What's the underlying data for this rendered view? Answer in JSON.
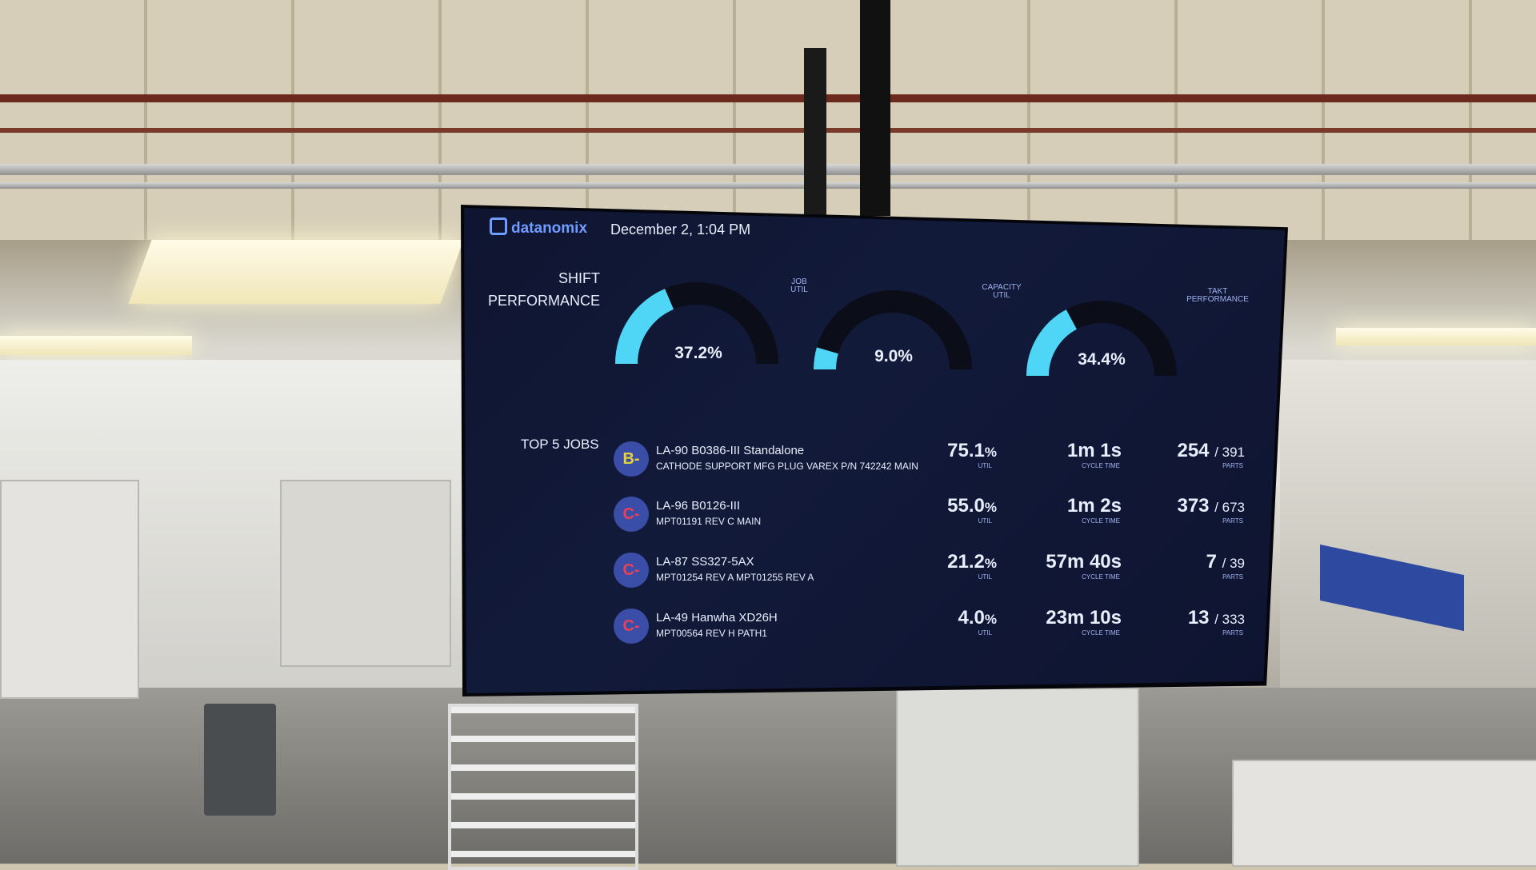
{
  "header": {
    "brand": "datanomix",
    "datetime": "December 2, 1:04 PM"
  },
  "shift_performance": {
    "title_line1": "SHIFT",
    "title_line2": "PERFORMANCE",
    "gauges": [
      {
        "label_line1": "JOB",
        "label_line2": "UTIL",
        "value_text": "37.2%",
        "value": 37.2
      },
      {
        "label_line1": "CAPACITY",
        "label_line2": "UTIL",
        "value_text": "9.0%",
        "value": 9.0
      },
      {
        "label_line1": "TAKT",
        "label_line2": "PERFORMANCE",
        "value_text": "34.4%",
        "value": 34.4
      }
    ],
    "gauge_color": "#4fd6f7",
    "track_color": "#0b0d18"
  },
  "top_jobs": {
    "title": "TOP 5 JOBS",
    "util_label": "UTIL",
    "cycle_label": "CYCLE TIME",
    "parts_label": "PARTS",
    "rows": [
      {
        "grade": "B-",
        "grade_color": "#e6d13a",
        "title": "LA-90 B0386-III Standalone",
        "subtitle": "CATHODE SUPPORT MFG PLUG VAREX P/N 742242 MAIN",
        "util": "75.1",
        "util_unit": "%",
        "cycle": "1m 1s",
        "parts_done": "254",
        "parts_total": "/ 391"
      },
      {
        "grade": "C-",
        "grade_color": "#e8415a",
        "title": "LA-96 B0126-III",
        "subtitle": "MPT01191 REV C MAIN",
        "util": "55.0",
        "util_unit": "%",
        "cycle": "1m 2s",
        "parts_done": "373",
        "parts_total": "/ 673"
      },
      {
        "grade": "C-",
        "grade_color": "#e8415a",
        "title": "LA-87 SS327-5AX",
        "subtitle": "MPT01254 REV A MPT01255 REV A",
        "util": "21.2",
        "util_unit": "%",
        "cycle": "57m 40s",
        "parts_done": "7",
        "parts_total": "/ 39"
      },
      {
        "grade": "C-",
        "grade_color": "#e8415a",
        "title": "LA-49 Hanwha XD26H",
        "subtitle": "MPT00564 REV H PATH1",
        "util": "4.0",
        "util_unit": "%",
        "cycle": "23m 10s",
        "parts_done": "13",
        "parts_total": "/ 333"
      }
    ]
  }
}
